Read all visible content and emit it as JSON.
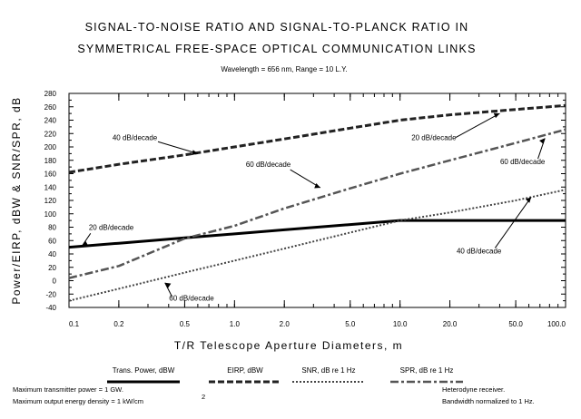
{
  "chart_data": {
    "type": "line",
    "title_lines": [
      "SIGNAL-TO-NOISE RATIO AND SIGNAL-TO-PLANCK RATIO IN",
      "SYMMETRICAL FREE-SPACE OPTICAL COMMUNICATION LINKS"
    ],
    "subtitle": "Wavelength = 656 nm, Range = 10 L.Y.",
    "xlabel": "T/R Telescope Aperture Diameters, m",
    "ylabel": "Power/EIRP, dBW & SNR/SPR, dB",
    "x_scale": "log",
    "xlim": [
      0.1,
      100
    ],
    "ylim": [
      -40,
      280
    ],
    "x_ticks": [
      0.1,
      0.2,
      0.5,
      1,
      2,
      5,
      10,
      20,
      50,
      100
    ],
    "x_tick_labels": [
      "0.1",
      "0.2",
      "0.5",
      "1.0",
      "2.0",
      "5.0",
      "10.0",
      "20.0",
      "50.0",
      "100.0"
    ],
    "y_ticks": [
      -40,
      -20,
      0,
      20,
      40,
      60,
      80,
      100,
      120,
      140,
      160,
      180,
      200,
      220,
      240,
      260,
      280
    ],
    "y_tick_labels": [
      "-40",
      "-20",
      "0",
      "20",
      "40",
      "60",
      "80",
      "100",
      "120",
      "140",
      "160",
      "180",
      "200",
      "220",
      "240",
      "260",
      "280"
    ],
    "grid": false,
    "series": [
      {
        "name": "Trans. Power, dBW",
        "style": "solid",
        "color": "#000000",
        "width": 3,
        "x": [
          0.1,
          0.2,
          0.5,
          1,
          2,
          5,
          10,
          20,
          50,
          100
        ],
        "y": [
          50,
          56,
          64,
          70,
          76,
          84,
          90,
          90,
          90,
          90
        ]
      },
      {
        "name": "EIRP, dBW",
        "style": "dash",
        "color": "#222222",
        "width": 3,
        "x": [
          0.1,
          0.2,
          0.5,
          1,
          2,
          5,
          10,
          20,
          50,
          100
        ],
        "y": [
          162,
          174,
          188,
          200,
          212,
          228,
          240,
          248,
          256,
          262
        ]
      },
      {
        "name": "SNR, dB re 1 Hz",
        "style": "dot",
        "color": "#444444",
        "width": 2,
        "x": [
          0.1,
          0.2,
          0.5,
          1,
          2,
          5,
          10,
          20,
          50,
          100
        ],
        "y": [
          -30,
          -12,
          12,
          30,
          48,
          72,
          90,
          102,
          120,
          136
        ]
      },
      {
        "name": "SPR, dB re 1 Hz",
        "style": "dashdot",
        "color": "#555555",
        "width": 2.5,
        "x": [
          0.1,
          0.2,
          0.5,
          1,
          2,
          5,
          10,
          20,
          50,
          100
        ],
        "y": [
          4,
          22,
          63,
          82,
          108,
          138,
          160,
          180,
          206,
          226
        ]
      }
    ],
    "annotations": [
      {
        "text": "40 dB/decade",
        "text_at": [
          0.25,
          210
        ],
        "arrow_to": [
          0.6,
          190
        ]
      },
      {
        "text": "20 dB/decade",
        "text_at": [
          0.18,
          76
        ],
        "arrow_to": [
          0.12,
          52
        ]
      },
      {
        "text": "60 dB/decade",
        "text_at": [
          1.6,
          170
        ],
        "arrow_to": [
          3.3,
          139
        ]
      },
      {
        "text": "60 dB/decade",
        "text_at": [
          0.55,
          -30
        ],
        "arrow_to": [
          0.38,
          -3
        ]
      },
      {
        "text": "20 dB/decade",
        "text_at": [
          16,
          210
        ],
        "arrow_to": [
          40,
          250
        ]
      },
      {
        "text": "60 dB/decade",
        "text_at": [
          55,
          174
        ],
        "arrow_to": [
          75,
          213
        ]
      },
      {
        "text": "40 dB/decade",
        "text_at": [
          30,
          41
        ],
        "arrow_to": [
          62,
          125
        ]
      }
    ],
    "notes_left": [
      "Maximum transmitter power = 1 GW.",
      "Maximum output energy density = 1 kW/cm"
    ],
    "notes_left_superscript": "2",
    "notes_right": [
      "Heterodyne receiver.",
      "Bandwidth normalized to 1 Hz."
    ]
  }
}
